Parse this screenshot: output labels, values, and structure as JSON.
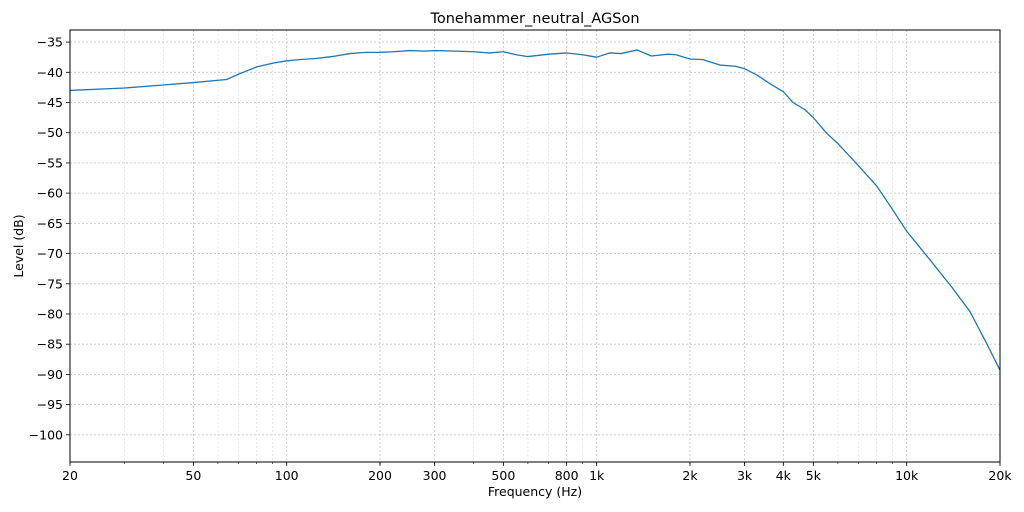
{
  "chart_data": {
    "type": "line",
    "title": "Tonehammer_neutral_AGSon",
    "xlabel": "Frequency (Hz)",
    "ylabel": "Level (dB)",
    "xscale": "log",
    "xlim": [
      20,
      20000
    ],
    "ylim": [
      -104.5,
      -33
    ],
    "grid": true,
    "x_ticks": [
      {
        "value": 20,
        "label": "20"
      },
      {
        "value": 50,
        "label": "50"
      },
      {
        "value": 100,
        "label": "100"
      },
      {
        "value": 200,
        "label": "200"
      },
      {
        "value": 300,
        "label": "300"
      },
      {
        "value": 500,
        "label": "500"
      },
      {
        "value": 800,
        "label": "800"
      },
      {
        "value": 1000,
        "label": "1k"
      },
      {
        "value": 2000,
        "label": "2k"
      },
      {
        "value": 3000,
        "label": "3k"
      },
      {
        "value": 4000,
        "label": "4k"
      },
      {
        "value": 5000,
        "label": "5k"
      },
      {
        "value": 10000,
        "label": "10k"
      },
      {
        "value": 20000,
        "label": "20k"
      }
    ],
    "y_ticks": [
      -35,
      -40,
      -45,
      -50,
      -55,
      -60,
      -65,
      -70,
      -75,
      -80,
      -85,
      -90,
      -95,
      -100
    ],
    "series": [
      {
        "color": "#1f77b4",
        "x": [
          20,
          30,
          40,
          50,
          64,
          70,
          80,
          90,
          100,
          110,
          125,
          140,
          160,
          180,
          200,
          220,
          250,
          280,
          300,
          350,
          400,
          450,
          500,
          550,
          600,
          700,
          800,
          900,
          1000,
          1100,
          1200,
          1350,
          1500,
          1700,
          1800,
          2000,
          2200,
          2500,
          2800,
          3000,
          3300,
          3600,
          4000,
          4300,
          4700,
          5000,
          5500,
          6000,
          7000,
          8000,
          9000,
          10000,
          12000,
          14000,
          16000,
          18000,
          20000
        ],
        "y": [
          -43,
          -42.6,
          -42.1,
          -41.7,
          -41.2,
          -40.3,
          -39.1,
          -38.5,
          -38.1,
          -37.9,
          -37.7,
          -37.4,
          -36.9,
          -36.7,
          -36.7,
          -36.6,
          -36.4,
          -36.5,
          -36.4,
          -36.5,
          -36.6,
          -36.8,
          -36.6,
          -37.1,
          -37.4,
          -37.0,
          -36.8,
          -37.1,
          -37.5,
          -36.8,
          -36.9,
          -36.3,
          -37.3,
          -37.0,
          -37.1,
          -37.8,
          -37.9,
          -38.8,
          -39.0,
          -39.4,
          -40.5,
          -41.8,
          -43.2,
          -45.0,
          -46.2,
          -47.5,
          -50.0,
          -51.8,
          -55.5,
          -58.8,
          -62.7,
          -66.3,
          -71.3,
          -75.6,
          -79.6,
          -84.6,
          -89.3
        ]
      }
    ]
  }
}
